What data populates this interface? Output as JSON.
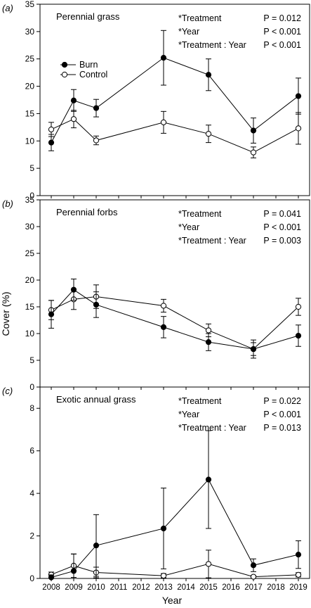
{
  "chart_data": [
    {
      "panel": "(a)",
      "type": "line",
      "title": "Perennial grass",
      "x": [
        2008,
        2009,
        2010,
        2013,
        2015,
        2017,
        2019
      ],
      "ylim": [
        0,
        35
      ],
      "yticks": [
        0,
        5,
        10,
        15,
        20,
        25,
        30,
        35
      ],
      "legend": "left",
      "series": [
        {
          "name": "Burn",
          "marker": "filled-circle",
          "values": [
            9.7,
            17.4,
            16.0,
            25.2,
            22.1,
            11.9,
            18.2
          ],
          "err": [
            1.5,
            2.0,
            1.6,
            5.0,
            2.9,
            2.3,
            3.3
          ]
        },
        {
          "name": "Control",
          "marker": "open-circle",
          "values": [
            12.1,
            14.0,
            10.1,
            13.4,
            11.3,
            7.9,
            12.3
          ],
          "err": [
            1.3,
            1.6,
            0.8,
            2.0,
            1.6,
            1.0,
            2.9
          ]
        }
      ],
      "stats": [
        {
          "label": "*Treatment",
          "p": "P = 0.012"
        },
        {
          "label": "*Year",
          "p": "P < 0.001"
        },
        {
          "label": "*Treatment : Year",
          "p": "P < 0.001"
        }
      ]
    },
    {
      "panel": "(b)",
      "type": "line",
      "title": "Perennial forbs",
      "x": [
        2008,
        2009,
        2010,
        2013,
        2015,
        2017,
        2019
      ],
      "ylim": [
        0,
        35
      ],
      "yticks": [
        0,
        5,
        10,
        15,
        20,
        25,
        30,
        35
      ],
      "series": [
        {
          "name": "Burn",
          "marker": "filled-circle",
          "values": [
            13.6,
            18.2,
            15.4,
            11.2,
            8.4,
            7.1,
            9.6
          ],
          "err": [
            2.6,
            2.0,
            2.4,
            2.0,
            1.6,
            1.2,
            2.0
          ]
        },
        {
          "name": "Control",
          "marker": "open-circle",
          "values": [
            14.4,
            16.4,
            16.9,
            15.2,
            10.6,
            7.1,
            15.0
          ],
          "err": [
            1.8,
            1.9,
            2.2,
            1.2,
            1.2,
            1.7,
            1.6
          ]
        }
      ],
      "stats": [
        {
          "label": "*Treatment",
          "p": "P = 0.041"
        },
        {
          "label": "*Year",
          "p": "P < 0.001"
        },
        {
          "label": "*Treatment : Year",
          "p": "P = 0.003"
        }
      ]
    },
    {
      "panel": "(c)",
      "type": "line",
      "title": "Exotic annual grass",
      "x": [
        2008,
        2009,
        2010,
        2013,
        2015,
        2017,
        2019
      ],
      "ylim": [
        0,
        9
      ],
      "yticks": [
        0,
        2,
        4,
        6,
        8
      ],
      "series": [
        {
          "name": "Burn",
          "marker": "filled-circle",
          "values": [
            0.05,
            0.35,
            1.55,
            2.35,
            4.65,
            0.62,
            1.12
          ],
          "err": [
            0.12,
            0.8,
            1.45,
            1.9,
            2.3,
            0.3,
            0.65
          ]
        },
        {
          "name": "Control",
          "marker": "open-circle",
          "values": [
            0.18,
            0.6,
            0.28,
            0.13,
            0.68,
            0.08,
            0.17
          ],
          "err": [
            0.12,
            0.55,
            0.25,
            0.1,
            0.65,
            0.06,
            0.1
          ]
        }
      ],
      "stats": [
        {
          "label": "*Treatment",
          "p": "P = 0.022"
        },
        {
          "label": "*Year",
          "p": "P < 0.001"
        },
        {
          "label": "*Treatment : Year",
          "p": "P = 0.013"
        }
      ]
    }
  ],
  "xaxis": {
    "label": "Year",
    "ticks": [
      2008,
      2009,
      2010,
      2011,
      2012,
      2013,
      2014,
      2015,
      2016,
      2017,
      2018,
      2019
    ],
    "range": [
      2007.5,
      2019.5
    ]
  },
  "ylabel": "Cover (%)",
  "colors": {
    "line": "#000000",
    "background": "#ffffff"
  }
}
